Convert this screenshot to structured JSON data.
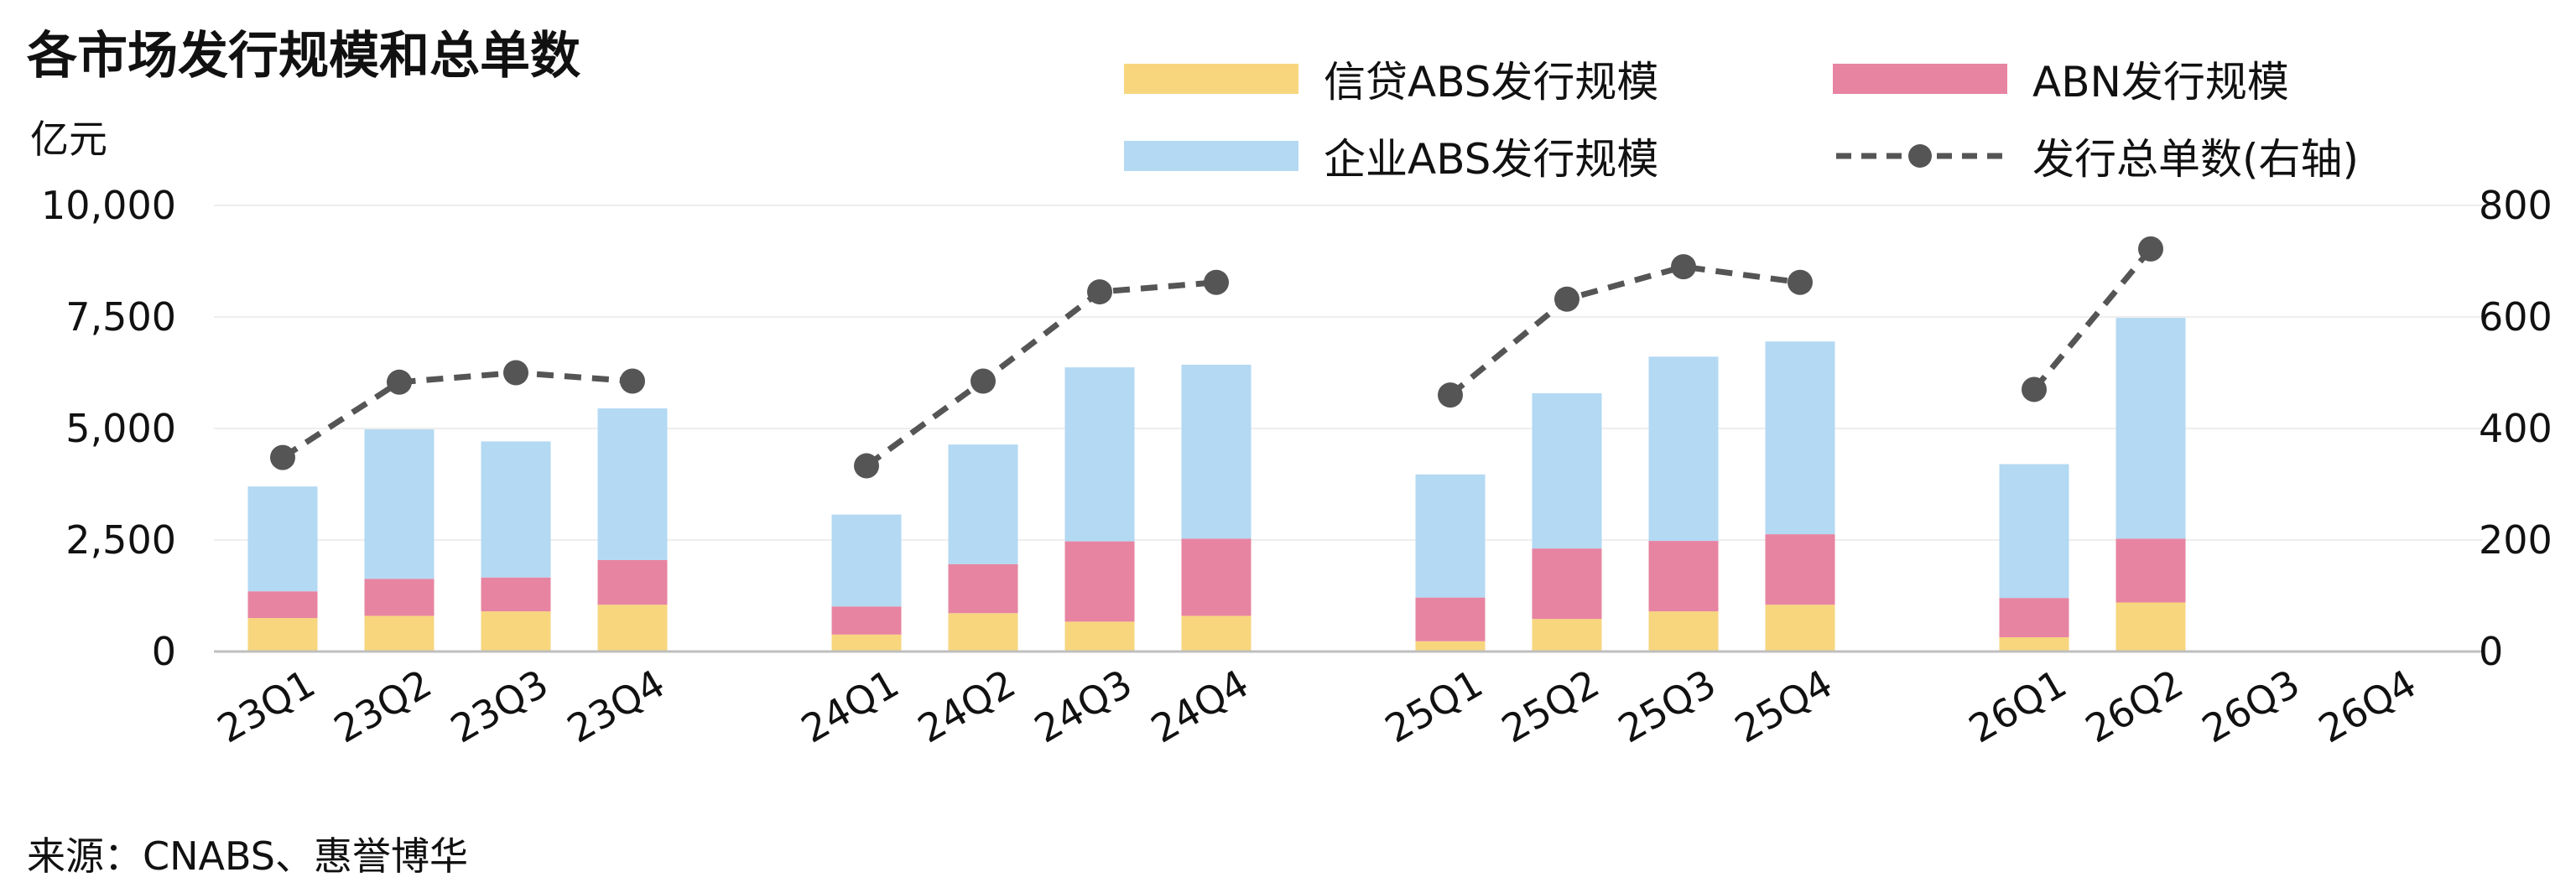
{
  "title": "各市场发行规模和总单数",
  "source": "来源：CNABS、惠誉博华",
  "chart_data": {
    "type": "bar",
    "stacked": true,
    "categories": [
      "23Q1",
      "23Q2",
      "23Q3",
      "23Q4",
      "24Q1",
      "24Q2",
      "24Q3",
      "24Q4",
      "25Q1",
      "25Q2",
      "25Q3",
      "25Q4",
      "26Q1",
      "26Q2",
      "26Q3",
      "26Q4"
    ],
    "series": [
      {
        "name": "信贷ABS发行规模",
        "color": "#f7d67e",
        "values": [
          750,
          800,
          900,
          1050,
          380,
          860,
          670,
          800,
          230,
          730,
          900,
          1050,
          320,
          1100,
          null,
          null
        ]
      },
      {
        "name": "ABN发行规模",
        "color": "#e784a2",
        "values": [
          600,
          830,
          760,
          1000,
          630,
          1100,
          1800,
          1730,
          980,
          1580,
          1580,
          1580,
          880,
          1430,
          null,
          null
        ]
      },
      {
        "name": "企业ABS发行规模",
        "color": "#b3d9f3",
        "values": [
          2350,
          3350,
          3050,
          3400,
          2060,
          2680,
          3900,
          3900,
          2760,
          3480,
          4130,
          4320,
          3000,
          4950,
          null,
          null
        ]
      }
    ],
    "line_series": {
      "name": "发行总单数(右轴)",
      "color": "#555555",
      "axis": "right",
      "values": [
        348,
        483,
        500,
        485,
        333,
        485,
        645,
        662,
        460,
        632,
        690,
        662,
        470,
        722,
        null,
        null
      ]
    },
    "ylabel": "亿元",
    "ylim": [
      0,
      10000
    ],
    "yticks": [
      "0",
      "2,500",
      "5,000",
      "7,500",
      "10,000"
    ],
    "y2lim": [
      0,
      800
    ],
    "y2ticks": [
      "0",
      "200",
      "400",
      "600",
      "800"
    ],
    "grid": true,
    "legend_position": "top-right"
  }
}
